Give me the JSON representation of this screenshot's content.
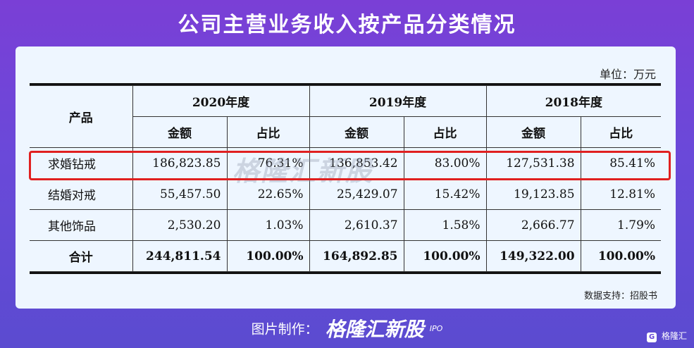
{
  "title": "公司主营业务收入按产品分类情况",
  "unit_label": "单位：万元",
  "table": {
    "product_header": "产品",
    "years": [
      "2020年度",
      "2019年度",
      "2018年度"
    ],
    "sub_headers": [
      "金额",
      "占比"
    ],
    "rows": [
      {
        "product": "求婚钻戒",
        "cells": [
          "186,823.85",
          "76.31%",
          "136,853.42",
          "83.00%",
          "127,531.38",
          "85.41%"
        ],
        "highlighted": true
      },
      {
        "product": "结婚对戒",
        "cells": [
          "55,457.50",
          "22.65%",
          "25,429.07",
          "15.42%",
          "19,123.85",
          "12.81%"
        ]
      },
      {
        "product": "其他饰品",
        "cells": [
          "2,530.20",
          "1.03%",
          "2,610.37",
          "1.58%",
          "2,666.77",
          "1.79%"
        ]
      }
    ],
    "total": {
      "product": "合计",
      "cells": [
        "244,811.54",
        "100.00%",
        "164,892.85",
        "100.00%",
        "149,322.00",
        "100.00%"
      ]
    }
  },
  "watermark": "格隆汇新股",
  "source": "数据支持：招股书",
  "footer": {
    "label": "图片制作：",
    "brand": "格隆汇新股",
    "brand_suffix": "IPO"
  },
  "corner_logo": "格隆汇",
  "colors": {
    "background": "#6a49d9",
    "card": "#eef6ff",
    "highlight": "#e02020"
  }
}
